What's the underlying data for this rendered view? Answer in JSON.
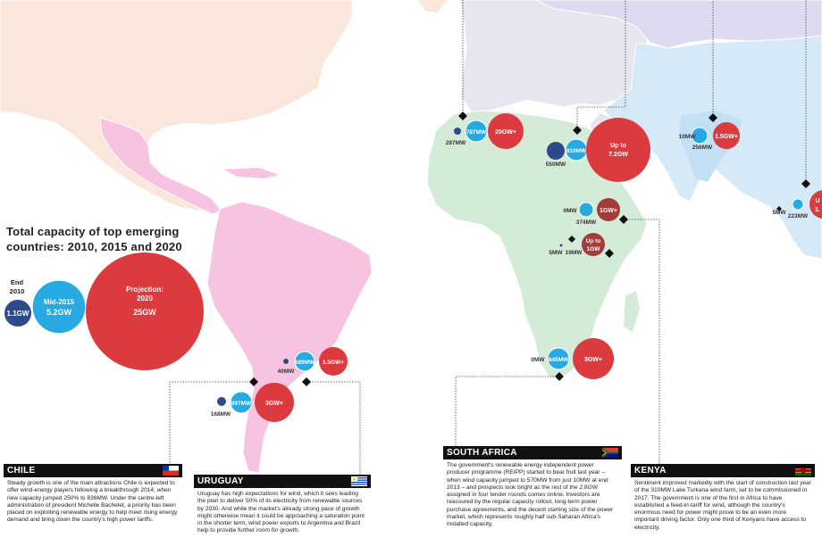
{
  "legend": {
    "title_line1": "Total capacity of top emerging",
    "title_line2": "countries: 2010, 2015 and 2020",
    "end2010": {
      "label_line1": "End",
      "label_line2": "2010",
      "value": "1.1GW"
    },
    "mid2015": {
      "label": "Mid-2015",
      "value": "5.2GW"
    },
    "proj2020": {
      "label_line1": "Projection:",
      "label_line2": "2020",
      "value": "25GW"
    }
  },
  "bubbles": {
    "morocco_a": "787MW",
    "morocco_b": "20GW+",
    "morocco_c": "287MW",
    "egypt_a": "810MW",
    "egypt_b_line1": "Up to",
    "egypt_b_line2": "7.2GW",
    "egypt_c": "550MW",
    "pakistan_a": "10MW",
    "pakistan_b": "1.5GW+",
    "pakistan_c": "256MW",
    "ethiopia_a": "0MW",
    "ethiopia_b": "1GW+",
    "ethiopia_c": "374MW",
    "kenya_a": "5MW",
    "kenya_b": "19MW",
    "kenya_c_line1": "Up to",
    "kenya_c_line2": "1GW",
    "thai_a": "5MW",
    "thai_b": "223MW",
    "thai_c": "1.",
    "thai_c_top": "U",
    "uruguay_a": "40MW",
    "uruguay_b": "689MW",
    "uruguay_c": "1.5GW+",
    "chile_a": "168MW",
    "chile_b": "897MW",
    "chile_c": "3GW+",
    "sa_a": "0MW",
    "sa_b": "845MW",
    "sa_c": "3GW+"
  },
  "panels": {
    "chile": {
      "title": "CHILE",
      "text": "Steady growth is one of the main attractions Chile is expected to offer wind-energy players following a breakthrough 2014, when new capacity jumped 250% to 836MW. Under the centre-left administration of president Michelle Bachelet, a priority has been placed on exploiting renewable energy to help meet rising energy demand and bring down the country's high power tariffs."
    },
    "uruguay": {
      "title": "URUGUAY",
      "text": "Uruguay has high expectations for wind, which it sees leading the plan to deliver 50% of its electricity from renewable sources by 2030. And while the market's already strong pace of growth might otherwise mean it could be approaching a saturation point in the shorter term, wind power exports to Argentina and Brazil help to provide further room for growth."
    },
    "south_africa": {
      "title": "SOUTH AFRICA",
      "text": "The government's renewable energy independent power producer programme (REIPP) started to bear fruit last year – when wind capacity jumped to 570MW from just 10MW at end 2013 – and prospects look bright as the rest of the 2.8GW assigned in four tender rounds comes online. Investors are reassured by the regular capacity rollout, long-term power purchase agreements, and the decent starting size of the power market, which represents roughly half sub-Saharan Africa's installed capacity."
    },
    "kenya": {
      "title": "KENYA",
      "text": "Sentiment improved markedly with the start of construction last year of the 310MW Lake Turkana wind farm, set to be commissioned in 2017. The government is one of the first in Africa to have established a feed-in-tariff for wind, although the country's enormous need for power might prove to be an even more important driving factor. Only one third of Kenyans have access to electricity."
    }
  },
  "colors": {
    "ocean": "#ffffff",
    "north_america": "#fbe6dc",
    "south_america": "#f7c3e0",
    "africa": "#d4ebd8",
    "europe": "#e6e6ef",
    "asia": "#d6e9f7",
    "russia": "#dedbf0",
    "red": "#db3b3e",
    "cyan": "#27a9e1",
    "navy": "#2f4a8a",
    "dark_red": "#a33d3c"
  }
}
